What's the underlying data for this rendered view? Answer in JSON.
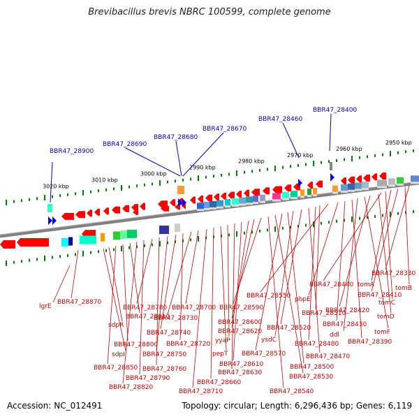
{
  "title": "Brevibacillus brevis NBRC 100599, complete genome",
  "footer": {
    "accession": "Accession: NC_012491",
    "summary": "Topology: circular; Length: 6,296,436 bp; Genes: 6,119"
  },
  "scale_labels": [
    "2950 kbp",
    "2960 kbp",
    "2970 kbp",
    "2980 kbp",
    "2990 kbp",
    "3000 kbp",
    "3010 kbp",
    "3020 kbp"
  ],
  "top_labels": [
    "BBR47_28900",
    "BBR47_28690",
    "BBR47_28680",
    "BBR47_28670",
    "BBR47_28460",
    "BBR47_28400"
  ],
  "bottom_labels": [
    "BBR47_28330",
    "tomB",
    "BBR47_28410",
    "tomA",
    "tomC",
    "BBR47_28440",
    "tomD",
    "BBR47_28420",
    "tomF",
    "ddl",
    "BBR47_28390",
    "BBR47_28430",
    "pbpE",
    "BBR47_28550",
    "BBR47_28510",
    "BBR47_28480",
    "BBR47_28470",
    "BBR47_28520",
    "ysdC",
    "BBR47_28500",
    "BBR47_28570",
    "BBR47_28530",
    "BBR47_28540",
    "BBR47_28590",
    "BBR47_28600",
    "BBR47_28620",
    "BBR47_28610",
    "BBR47_28630",
    "yyaP",
    "pepT",
    "BBR47_28660",
    "BBR47_28710",
    "BBR47_28700",
    "BBR47_28730",
    "BBR47_28720",
    "BBR47_28740",
    "BBR47_28750",
    "BBR47_28760",
    "BBR47_28780",
    "BBR47_28790",
    "BBR47_28820",
    "BBR47_28810",
    "BBR47_28800",
    "BBR47_28850",
    "sdpR",
    "sdpI",
    "BBR47_28870",
    "lgrE"
  ],
  "colors": {
    "gene_forward": "#ff0000",
    "gene_arrow_blue": "#0000ff",
    "backbone": "#808080",
    "tick": "#008000",
    "label_top": "#0000cc",
    "label_bottom": "#cc0000"
  }
}
